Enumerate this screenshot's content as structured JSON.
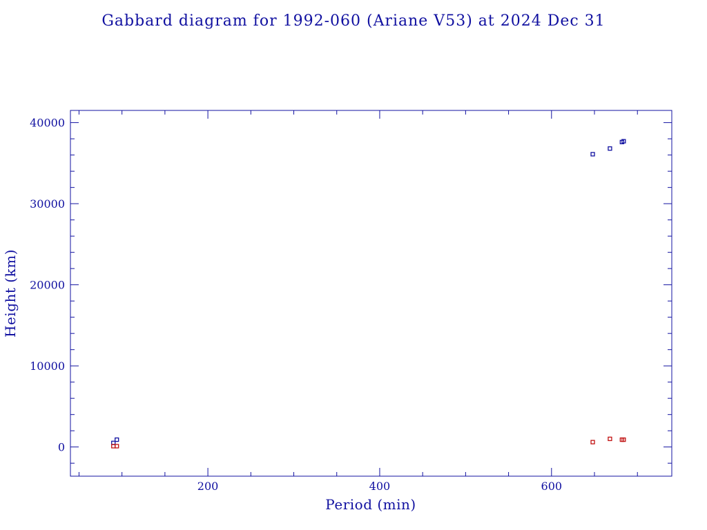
{
  "chart_data": {
    "type": "scatter",
    "title": "Gabbard diagram for 1992-060 (Ariane V53) at 2024 Dec 31",
    "xlabel": "Period (min)",
    "ylabel": "Height (km)",
    "xlim": [
      40,
      740
    ],
    "ylim": [
      -3600,
      41500
    ],
    "xticks": [
      200,
      400,
      600
    ],
    "yticks": [
      0,
      10000,
      20000,
      30000,
      40000
    ],
    "x_minor_step": 50,
    "y_minor_step": 2000,
    "grid": false,
    "colors": {
      "apogee": "#1010a0",
      "perigee": "#c01010",
      "axis": "#1010a0"
    },
    "series": [
      {
        "key": "apogee",
        "points": [
          {
            "x": 90,
            "y": 500
          },
          {
            "x": 94,
            "y": 900
          },
          {
            "x": 648,
            "y": 36100
          },
          {
            "x": 668,
            "y": 36800
          },
          {
            "x": 682,
            "y": 37600
          },
          {
            "x": 684,
            "y": 37700
          }
        ]
      },
      {
        "key": "perigee",
        "points": [
          {
            "x": 90,
            "y": 100
          },
          {
            "x": 94,
            "y": 100
          },
          {
            "x": 648,
            "y": 600
          },
          {
            "x": 668,
            "y": 1000
          },
          {
            "x": 682,
            "y": 900
          },
          {
            "x": 684,
            "y": 900
          }
        ]
      }
    ]
  }
}
